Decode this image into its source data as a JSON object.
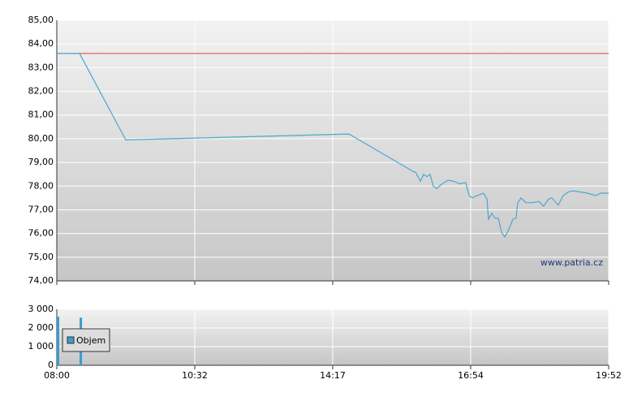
{
  "chart_data": [
    {
      "type": "line",
      "watermark": "www.patria.cz",
      "ylim": [
        74,
        85
      ],
      "yticks": [
        {
          "value": 74,
          "label": "74,00"
        },
        {
          "value": 75,
          "label": "75,00"
        },
        {
          "value": 76,
          "label": "76,00"
        },
        {
          "value": 77,
          "label": "77,00"
        },
        {
          "value": 78,
          "label": "78,00"
        },
        {
          "value": 79,
          "label": "79,00"
        },
        {
          "value": 80,
          "label": "80,00"
        },
        {
          "value": 81,
          "label": "81,00"
        },
        {
          "value": 82,
          "label": "82,00"
        },
        {
          "value": 83,
          "label": "83,00"
        },
        {
          "value": 84,
          "label": "84,00"
        },
        {
          "value": 85,
          "label": "85,00"
        }
      ],
      "grid": true,
      "reference_value": 83.6,
      "reference_color": "#e0403a",
      "color": "#4aa8d0",
      "x": [
        0,
        0.165,
        0.5,
        2.118,
        2.588,
        2.6,
        2.635,
        2.659,
        2.682,
        2.706,
        2.729,
        2.753,
        2.794,
        2.835,
        2.882,
        2.918,
        2.965,
        2.988,
        3.012,
        3.047,
        3.094,
        3.118,
        3.129,
        3.153,
        3.176,
        3.2,
        3.224,
        3.247,
        3.271,
        3.306,
        3.329,
        3.341,
        3.365,
        3.4,
        3.447,
        3.494,
        3.529,
        3.565,
        3.588,
        3.635,
        3.671,
        3.706,
        3.741,
        3.8,
        3.847,
        3.906,
        3.941,
        4
      ],
      "values": [
        83.6,
        83.6,
        79.95,
        80.2,
        78.6,
        78.6,
        78.2,
        78.5,
        78.4,
        78.5,
        78.0,
        77.9,
        78.1,
        78.25,
        78.2,
        78.1,
        78.15,
        77.6,
        77.5,
        77.6,
        77.7,
        77.45,
        76.6,
        76.85,
        76.65,
        76.65,
        76.05,
        75.85,
        76.1,
        76.6,
        76.65,
        77.3,
        77.5,
        77.3,
        77.3,
        77.35,
        77.15,
        77.45,
        77.5,
        77.2,
        77.6,
        77.75,
        77.8,
        77.75,
        77.7,
        77.6,
        77.7,
        77.7
      ]
    },
    {
      "type": "bar",
      "xlim": [
        0,
        4
      ],
      "xticks": [
        {
          "value": 0,
          "label": "08:00"
        },
        {
          "value": 1,
          "label": "10:32"
        },
        {
          "value": 2,
          "label": "14:17"
        },
        {
          "value": 3,
          "label": "16:54"
        },
        {
          "value": 4,
          "label": "19:52"
        }
      ],
      "ylim": [
        0,
        3000
      ],
      "yticks": [
        0,
        {
          "value": 1000,
          "label": "1 000"
        },
        {
          "value": 2000,
          "label": "2 000"
        },
        {
          "value": 3000,
          "label": "3 000"
        }
      ],
      "grid": true,
      "series": [
        {
          "name": "Objem",
          "color": "#3a9ccc",
          "x": [
            0,
            0.165
          ],
          "values": [
            2600,
            2550
          ]
        }
      ]
    }
  ]
}
